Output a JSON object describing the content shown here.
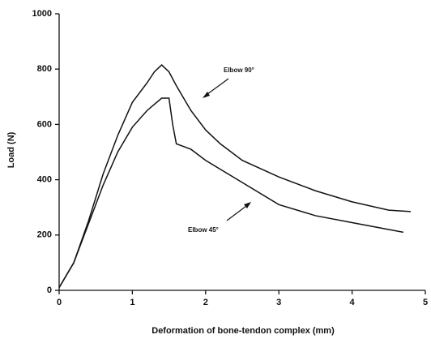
{
  "chart_data": {
    "type": "line",
    "xlabel": "Deformation of bone-tendon complex (mm)",
    "ylabel": "Load (N)",
    "xlim": [
      0,
      5
    ],
    "xticks": [
      0,
      1,
      2,
      3,
      4,
      5
    ],
    "ylim": [
      0,
      1000
    ],
    "yticks": [
      0,
      200,
      400,
      600,
      800,
      1000
    ],
    "series": [
      {
        "name": "Elbow 90°",
        "color": "#111111",
        "x": [
          0,
          0.2,
          0.4,
          0.6,
          0.8,
          1.0,
          1.2,
          1.3,
          1.4,
          1.5,
          1.6,
          1.8,
          2.0,
          2.2,
          2.5,
          3.0,
          3.5,
          4.0,
          4.5,
          4.8
        ],
        "values": [
          10,
          100,
          250,
          420,
          560,
          680,
          750,
          790,
          815,
          790,
          740,
          650,
          580,
          530,
          470,
          410,
          360,
          320,
          290,
          285
        ]
      },
      {
        "name": "Elbow 45°",
        "color": "#111111",
        "x": [
          0,
          0.2,
          0.4,
          0.6,
          0.8,
          1.0,
          1.2,
          1.4,
          1.5,
          1.55,
          1.6,
          1.8,
          2.0,
          2.5,
          3.0,
          3.5,
          4.0,
          4.5,
          4.7
        ],
        "values": [
          10,
          100,
          240,
          380,
          500,
          590,
          650,
          695,
          695,
          600,
          530,
          510,
          470,
          390,
          310,
          270,
          245,
          220,
          210
        ]
      }
    ]
  }
}
